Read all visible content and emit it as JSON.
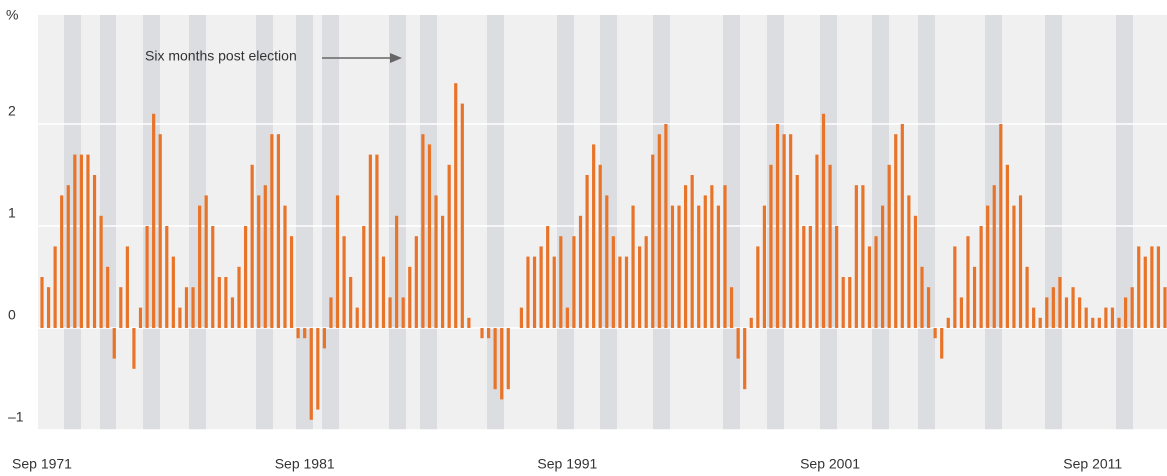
{
  "chart_data": {
    "type": "bar",
    "y_axis_label": "%",
    "annotation": "Six months post election",
    "color": "#e8742a",
    "ylim": [
      -1,
      3
    ],
    "yticks": [
      {
        "value": -1,
        "label": "–1"
      },
      0,
      1,
      2
    ],
    "grid": true,
    "categories": [
      "Sep 1971",
      null,
      null,
      null,
      null,
      null,
      null,
      null,
      null,
      null,
      null,
      null,
      null,
      null,
      null,
      null,
      null,
      null,
      null,
      null,
      null,
      null,
      null,
      null,
      null,
      null,
      null,
      null,
      null,
      null,
      null,
      null,
      null,
      null,
      null,
      null,
      null,
      null,
      null,
      null,
      "Sep 1981",
      null,
      null,
      null,
      null,
      null,
      null,
      null,
      null,
      null,
      null,
      null,
      null,
      null,
      null,
      null,
      null,
      null,
      null,
      null,
      null,
      null,
      null,
      null,
      null,
      null,
      null,
      null,
      null,
      null,
      null,
      null,
      null,
      null,
      null,
      null,
      null,
      null,
      null,
      null,
      "Sep 1991",
      null,
      null,
      null,
      null,
      null,
      null,
      null,
      null,
      null,
      null,
      null,
      null,
      null,
      null,
      null,
      null,
      null,
      null,
      null,
      null,
      null,
      null,
      null,
      null,
      null,
      null,
      null,
      null,
      null,
      null,
      null,
      null,
      null,
      null,
      null,
      null,
      null,
      null,
      null,
      "Sep 2001",
      null,
      null,
      null,
      null,
      null,
      null,
      null,
      null,
      null,
      null,
      null,
      null,
      null,
      null,
      null,
      null,
      null,
      null,
      null,
      null,
      null,
      null,
      null,
      null,
      null,
      null,
      null,
      null,
      null,
      null,
      null,
      null,
      null,
      null,
      null,
      null,
      null,
      null,
      null,
      "Sep 2011",
      null,
      null,
      null,
      null,
      null,
      null,
      null,
      null,
      null,
      null,
      null
    ],
    "values": [
      0.5,
      0.4,
      0.8,
      1.3,
      1.4,
      1.7,
      1.7,
      1.7,
      1.5,
      1.1,
      0.6,
      -0.3,
      0.4,
      0.8,
      -0.4,
      0.2,
      1.0,
      2.1,
      1.9,
      1.0,
      0.7,
      0.2,
      0.4,
      0.4,
      1.2,
      1.3,
      1.0,
      0.5,
      0.5,
      0.3,
      0.6,
      1.0,
      1.6,
      1.3,
      1.4,
      1.9,
      1.9,
      1.2,
      0.9,
      -0.1,
      -0.1,
      -0.9,
      -0.8,
      -0.2,
      0.3,
      1.3,
      0.9,
      0.5,
      0.2,
      1.0,
      1.7,
      1.7,
      0.7,
      0.3,
      1.1,
      0.3,
      0.6,
      0.9,
      1.9,
      1.8,
      1.3,
      1.1,
      1.6,
      2.4,
      2.2,
      0.1,
      0,
      -0.1,
      -0.1,
      -0.6,
      -0.7,
      -0.6,
      0,
      0.2,
      0.7,
      0.7,
      0.8,
      1.0,
      0.7,
      0.9,
      0.2,
      0.9,
      1.1,
      1.5,
      1.8,
      1.6,
      1.3,
      0.9,
      0.7,
      0.7,
      1.2,
      0.8,
      0.9,
      1.7,
      1.9,
      2.0,
      1.2,
      1.2,
      1.4,
      1.5,
      1.2,
      1.3,
      1.4,
      1.2,
      1.4,
      0.4,
      -0.3,
      -0.6,
      0.1,
      0.8,
      1.2,
      1.6,
      2.0,
      1.9,
      1.9,
      1.5,
      1.0,
      1.0,
      1.7,
      2.1,
      1.6,
      1.0,
      0.5,
      0.5,
      1.4,
      1.4,
      0.8,
      0.9,
      1.2,
      1.6,
      1.9,
      2.0,
      1.3,
      1.1,
      0.6,
      0.4,
      -0.1,
      -0.3,
      0.1,
      0.8,
      0.3,
      0.9,
      0.6,
      1.0,
      1.2,
      1.4,
      2.0,
      1.6,
      1.2,
      1.3,
      0.6,
      0.2,
      0.1,
      0.3,
      0.4,
      0.5,
      0.3,
      0.4,
      0.3,
      0.2,
      0.1,
      0.1,
      0.2,
      0.2,
      0.1,
      0.3,
      0.4,
      0.8,
      0.7,
      0.8,
      0.8,
      0.4
    ]
  }
}
